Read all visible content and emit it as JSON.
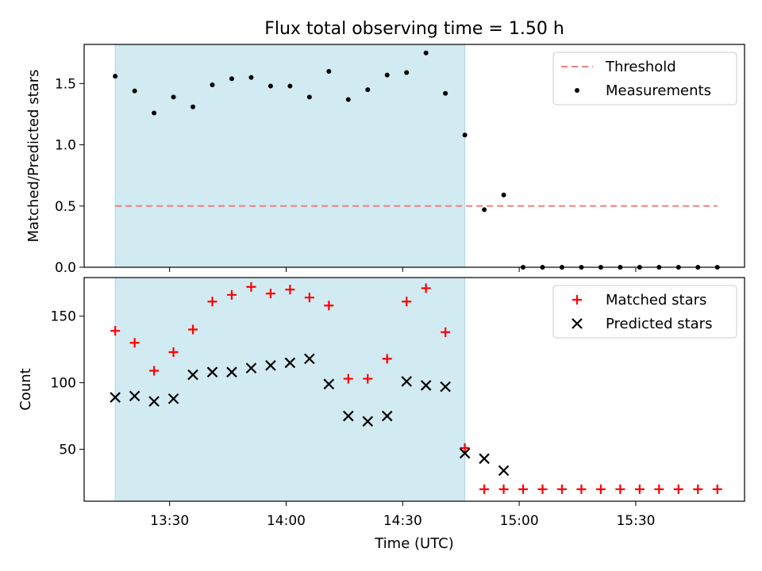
{
  "chart_data": [
    {
      "type": "scatter",
      "title": "Flux total observing time = 1.50 h",
      "xlabel": "",
      "ylabel": "Matched/Predicted stars",
      "xlim": [
        "13:08",
        "15:58"
      ],
      "ylim": [
        0,
        1.82
      ],
      "yticks": [
        "0.0",
        "0.5",
        "1.0",
        "1.5"
      ],
      "yticks_values": [
        0,
        0.5,
        1.0,
        1.5
      ],
      "shaded_span": {
        "x0": "13:16",
        "x1": "14:46",
        "color": "#add8e6"
      },
      "legend_position": "upper right",
      "series": [
        {
          "name": "Threshold",
          "kind": "line",
          "style": "dashed",
          "color": "#f08080",
          "x": [
            "13:16",
            "15:51"
          ],
          "values": [
            0.5,
            0.5
          ]
        },
        {
          "name": "Measurements",
          "kind": "scatter",
          "marker": "dot",
          "color": "#000000",
          "x": [
            "13:16",
            "13:21",
            "13:26",
            "13:31",
            "13:36",
            "13:41",
            "13:46",
            "13:51",
            "13:56",
            "14:01",
            "14:06",
            "14:11",
            "14:16",
            "14:21",
            "14:26",
            "14:31",
            "14:36",
            "14:41",
            "14:46",
            "14:51",
            "14:56",
            "15:01",
            "15:06",
            "15:11",
            "15:16",
            "15:21",
            "15:26",
            "15:31",
            "15:36",
            "15:41",
            "15:46",
            "15:51"
          ],
          "values": [
            1.56,
            1.44,
            1.26,
            1.39,
            1.31,
            1.49,
            1.54,
            1.55,
            1.48,
            1.48,
            1.39,
            1.6,
            1.37,
            1.45,
            1.57,
            1.59,
            1.75,
            1.42,
            1.08,
            0.47,
            0.59,
            0,
            0,
            0,
            0,
            0,
            0,
            0,
            0,
            0,
            0,
            0
          ]
        }
      ]
    },
    {
      "type": "scatter",
      "title": "",
      "xlabel": "Time (UTC)",
      "ylabel": "Count",
      "xlim": [
        "13:08",
        "15:58"
      ],
      "ylim": [
        11,
        179
      ],
      "xticks": [
        "13:30",
        "14:00",
        "14:30",
        "15:00",
        "15:30"
      ],
      "yticks": [
        "50",
        "100",
        "150"
      ],
      "yticks_values": [
        50,
        100,
        150
      ],
      "shaded_span": {
        "x0": "13:16",
        "x1": "14:46",
        "color": "#add8e6"
      },
      "legend_position": "upper right",
      "series": [
        {
          "name": "Matched stars",
          "marker": "plus",
          "color": "#ff0000",
          "x": [
            "13:16",
            "13:21",
            "13:26",
            "13:31",
            "13:36",
            "13:41",
            "13:46",
            "13:51",
            "13:56",
            "14:01",
            "14:06",
            "14:11",
            "14:16",
            "14:21",
            "14:26",
            "14:31",
            "14:36",
            "14:41",
            "14:46",
            "14:51",
            "14:56",
            "15:01",
            "15:06",
            "15:11",
            "15:16",
            "15:21",
            "15:26",
            "15:31",
            "15:36",
            "15:41",
            "15:46",
            "15:51"
          ],
          "values": [
            139,
            130,
            109,
            123,
            140,
            161,
            166,
            172,
            167,
            170,
            164,
            158,
            103,
            103,
            118,
            161,
            171,
            138,
            51,
            20,
            20,
            20,
            20,
            20,
            20,
            20,
            20,
            20,
            20,
            20,
            20,
            20
          ]
        },
        {
          "name": "Predicted stars",
          "marker": "x",
          "color": "#000000",
          "x": [
            "13:16",
            "13:21",
            "13:26",
            "13:31",
            "13:36",
            "13:41",
            "13:46",
            "13:51",
            "13:56",
            "14:01",
            "14:06",
            "14:11",
            "14:16",
            "14:21",
            "14:26",
            "14:31",
            "14:36",
            "14:41",
            "14:46",
            "14:51",
            "14:56"
          ],
          "values": [
            89,
            90,
            86,
            88,
            106,
            108,
            108,
            111,
            113,
            115,
            118,
            99,
            75,
            71,
            75,
            101,
            98,
            97,
            47,
            43,
            34
          ]
        }
      ]
    }
  ]
}
